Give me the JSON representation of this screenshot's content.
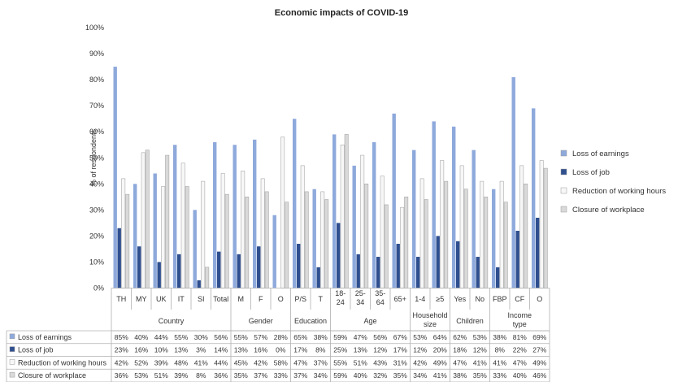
{
  "chart_data": {
    "type": "bar",
    "title": "Economic impacts of COVID-19",
    "ylabel": "% of respondents",
    "xlabel": "",
    "ylim": [
      0,
      100
    ],
    "yticks": [
      "0%",
      "10%",
      "20%",
      "30%",
      "40%",
      "50%",
      "60%",
      "70%",
      "80%",
      "90%",
      "100%"
    ],
    "grid": false,
    "legend_position": "right",
    "categories": [
      "TH",
      "MY",
      "UK",
      "IT",
      "SI",
      "Total",
      "M",
      "F",
      "O",
      "P/S",
      "T",
      "18-24",
      "25-34",
      "35-64",
      "65+",
      "1-4",
      "≥5",
      "Yes",
      "No",
      "FBP",
      "CF",
      "O"
    ],
    "groups": [
      {
        "label": "Country",
        "start": 0,
        "count": 6
      },
      {
        "label": "Gender",
        "start": 6,
        "count": 3
      },
      {
        "label": "Education",
        "start": 9,
        "count": 2
      },
      {
        "label": "Age",
        "start": 11,
        "count": 4
      },
      {
        "label": "Household size",
        "start": 15,
        "count": 2
      },
      {
        "label": "Children",
        "start": 17,
        "count": 2
      },
      {
        "label": "Income type",
        "start": 19,
        "count": 3
      }
    ],
    "series": [
      {
        "name": "Loss of earnings",
        "color": "#8ea9db",
        "values": [
          85,
          40,
          44,
          55,
          30,
          56,
          55,
          57,
          28,
          65,
          38,
          59,
          47,
          56,
          67,
          53,
          64,
          62,
          53,
          38,
          81,
          69
        ]
      },
      {
        "name": "Loss of job",
        "color": "#2f4f8f",
        "values": [
          23,
          16,
          10,
          13,
          3,
          14,
          13,
          16,
          0,
          17,
          8,
          25,
          13,
          12,
          17,
          12,
          20,
          18,
          12,
          8,
          22,
          27
        ]
      },
      {
        "name": "Reduction of working hours",
        "color": "#f7f7f7",
        "values": [
          42,
          52,
          39,
          48,
          41,
          44,
          45,
          42,
          58,
          47,
          37,
          55,
          51,
          43,
          31,
          42,
          49,
          47,
          41,
          41,
          47,
          49
        ]
      },
      {
        "name": "Closure of workplace",
        "color": "#d9d9d9",
        "values": [
          36,
          53,
          51,
          39,
          8,
          36,
          35,
          37,
          33,
          37,
          34,
          59,
          40,
          32,
          35,
          34,
          41,
          38,
          35,
          33,
          40,
          46
        ]
      }
    ]
  }
}
